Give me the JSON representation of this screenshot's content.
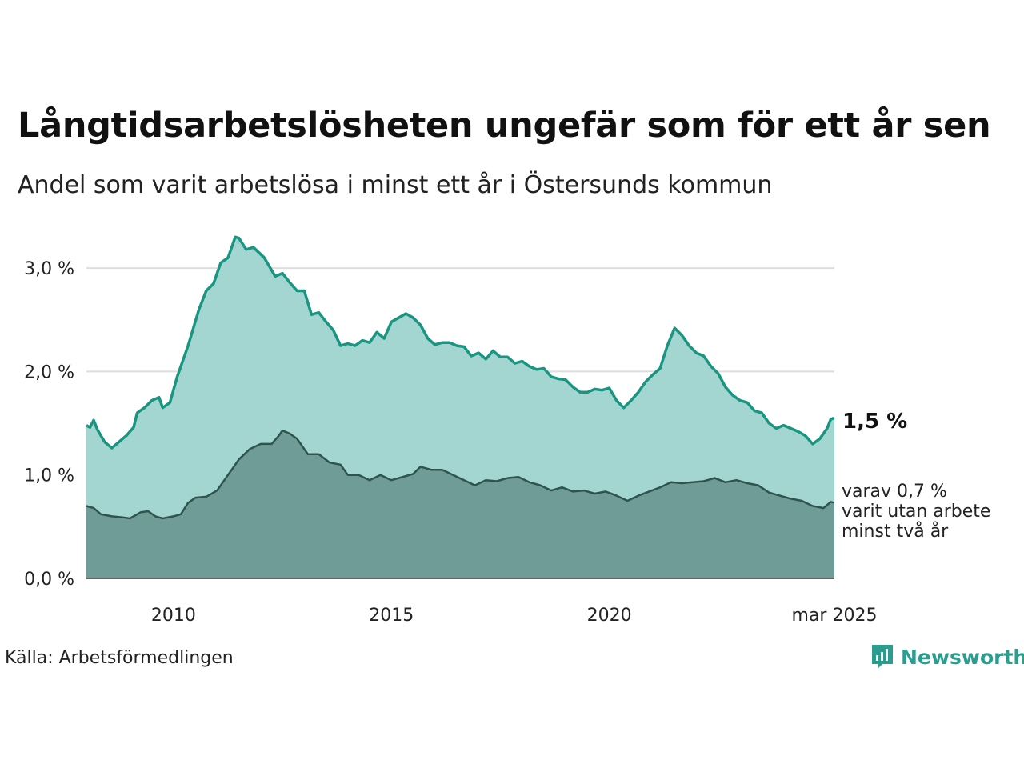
{
  "title": "Långtidsarbetslösheten ungefär som för ett år sen",
  "subtitle": "Andel som varit arbetslösa i minst ett år i Östersunds kommun",
  "source": "Källa: Arbetsförmedlingen",
  "brand": "Newsworthy",
  "end_label": "1,5 %",
  "annotation": [
    "varav 0,7 %",
    "varit utan arbete",
    "minst två år"
  ],
  "colors": {
    "top_line": "#1a9582",
    "top_fill": "#a3d6d0",
    "bottom_fill": "#6f9c96",
    "bottom_line": "#2f5450",
    "grid": "#dddddd",
    "brand": "#2a9d8f"
  },
  "chart_data": {
    "type": "area",
    "xlabel": "",
    "ylabel": "",
    "ylim": [
      0,
      3.3
    ],
    "xlim": [
      "2008-01",
      "2025-03"
    ],
    "y_ticks": [
      {
        "value": 0,
        "label": "0,0 %"
      },
      {
        "value": 1,
        "label": "1,0 %"
      },
      {
        "value": 2,
        "label": "2,0 %"
      },
      {
        "value": 3,
        "label": "3,0 %"
      }
    ],
    "x_ticks": [
      {
        "value": "2010-01",
        "label": "2010"
      },
      {
        "value": "2015-01",
        "label": "2015"
      },
      {
        "value": "2020-01",
        "label": "2020"
      },
      {
        "value": "2025-03",
        "label": "mar 2025"
      }
    ],
    "series": [
      {
        "name": "",
        "points": [
          [
            "2008-01",
            1.48
          ],
          [
            "2008-02",
            1.46
          ],
          [
            "2008-03",
            1.53
          ],
          [
            "2008-04",
            1.44
          ],
          [
            "2008-06",
            1.32
          ],
          [
            "2008-08",
            1.26
          ],
          [
            "2008-10",
            1.32
          ],
          [
            "2008-12",
            1.38
          ],
          [
            "2009-02",
            1.46
          ],
          [
            "2009-03",
            1.6
          ],
          [
            "2009-05",
            1.65
          ],
          [
            "2009-07",
            1.72
          ],
          [
            "2009-09",
            1.75
          ],
          [
            "2009-10",
            1.65
          ],
          [
            "2009-12",
            1.7
          ],
          [
            "2010-02",
            1.95
          ],
          [
            "2010-05",
            2.25
          ],
          [
            "2010-08",
            2.6
          ],
          [
            "2010-10",
            2.78
          ],
          [
            "2010-12",
            2.85
          ],
          [
            "2011-02",
            3.05
          ],
          [
            "2011-04",
            3.1
          ],
          [
            "2011-06",
            3.3
          ],
          [
            "2011-07",
            3.29
          ],
          [
            "2011-09",
            3.18
          ],
          [
            "2011-11",
            3.2
          ],
          [
            "2012-02",
            3.1
          ],
          [
            "2012-05",
            2.92
          ],
          [
            "2012-07",
            2.95
          ],
          [
            "2012-09",
            2.86
          ],
          [
            "2012-11",
            2.78
          ],
          [
            "2013-01",
            2.78
          ],
          [
            "2013-03",
            2.55
          ],
          [
            "2013-05",
            2.57
          ],
          [
            "2013-07",
            2.48
          ],
          [
            "2013-09",
            2.4
          ],
          [
            "2013-11",
            2.25
          ],
          [
            "2014-01",
            2.27
          ],
          [
            "2014-03",
            2.25
          ],
          [
            "2014-05",
            2.3
          ],
          [
            "2014-07",
            2.28
          ],
          [
            "2014-09",
            2.38
          ],
          [
            "2014-11",
            2.32
          ],
          [
            "2015-01",
            2.48
          ],
          [
            "2015-03",
            2.52
          ],
          [
            "2015-05",
            2.56
          ],
          [
            "2015-07",
            2.52
          ],
          [
            "2015-09",
            2.45
          ],
          [
            "2015-11",
            2.32
          ],
          [
            "2016-01",
            2.26
          ],
          [
            "2016-03",
            2.28
          ],
          [
            "2016-05",
            2.28
          ],
          [
            "2016-07",
            2.25
          ],
          [
            "2016-09",
            2.24
          ],
          [
            "2016-11",
            2.15
          ],
          [
            "2017-01",
            2.18
          ],
          [
            "2017-03",
            2.12
          ],
          [
            "2017-05",
            2.2
          ],
          [
            "2017-07",
            2.14
          ],
          [
            "2017-09",
            2.14
          ],
          [
            "2017-11",
            2.08
          ],
          [
            "2018-01",
            2.1
          ],
          [
            "2018-03",
            2.05
          ],
          [
            "2018-05",
            2.02
          ],
          [
            "2018-07",
            2.03
          ],
          [
            "2018-09",
            1.95
          ],
          [
            "2018-11",
            1.93
          ],
          [
            "2019-01",
            1.92
          ],
          [
            "2019-03",
            1.85
          ],
          [
            "2019-05",
            1.8
          ],
          [
            "2019-07",
            1.8
          ],
          [
            "2019-09",
            1.83
          ],
          [
            "2019-11",
            1.82
          ],
          [
            "2020-01",
            1.84
          ],
          [
            "2020-03",
            1.72
          ],
          [
            "2020-05",
            1.65
          ],
          [
            "2020-07",
            1.72
          ],
          [
            "2020-09",
            1.8
          ],
          [
            "2020-11",
            1.9
          ],
          [
            "2021-01",
            1.97
          ],
          [
            "2021-03",
            2.03
          ],
          [
            "2021-05",
            2.25
          ],
          [
            "2021-07",
            2.42
          ],
          [
            "2021-09",
            2.35
          ],
          [
            "2021-11",
            2.25
          ],
          [
            "2022-01",
            2.18
          ],
          [
            "2022-03",
            2.15
          ],
          [
            "2022-05",
            2.05
          ],
          [
            "2022-07",
            1.98
          ],
          [
            "2022-09",
            1.85
          ],
          [
            "2022-11",
            1.77
          ],
          [
            "2023-01",
            1.72
          ],
          [
            "2023-03",
            1.7
          ],
          [
            "2023-05",
            1.62
          ],
          [
            "2023-07",
            1.6
          ],
          [
            "2023-09",
            1.5
          ],
          [
            "2023-11",
            1.45
          ],
          [
            "2024-01",
            1.48
          ],
          [
            "2024-03",
            1.45
          ],
          [
            "2024-05",
            1.42
          ],
          [
            "2024-07",
            1.38
          ],
          [
            "2024-09",
            1.3
          ],
          [
            "2024-11",
            1.35
          ],
          [
            "2025-01",
            1.45
          ],
          [
            "2025-02",
            1.54
          ],
          [
            "2025-03",
            1.55
          ]
        ]
      },
      {
        "name": "",
        "points": [
          [
            "2008-01",
            0.7
          ],
          [
            "2008-03",
            0.68
          ],
          [
            "2008-05",
            0.62
          ],
          [
            "2008-08",
            0.6
          ],
          [
            "2008-11",
            0.59
          ],
          [
            "2009-01",
            0.58
          ],
          [
            "2009-04",
            0.64
          ],
          [
            "2009-06",
            0.65
          ],
          [
            "2009-08",
            0.6
          ],
          [
            "2009-10",
            0.58
          ],
          [
            "2010-01",
            0.6
          ],
          [
            "2010-03",
            0.62
          ],
          [
            "2010-05",
            0.73
          ],
          [
            "2010-07",
            0.78
          ],
          [
            "2010-10",
            0.79
          ],
          [
            "2011-01",
            0.85
          ],
          [
            "2011-04",
            1.0
          ],
          [
            "2011-07",
            1.15
          ],
          [
            "2011-10",
            1.25
          ],
          [
            "2012-01",
            1.3
          ],
          [
            "2012-04",
            1.3
          ],
          [
            "2012-06",
            1.38
          ],
          [
            "2012-07",
            1.43
          ],
          [
            "2012-09",
            1.4
          ],
          [
            "2012-11",
            1.35
          ],
          [
            "2013-02",
            1.2
          ],
          [
            "2013-05",
            1.2
          ],
          [
            "2013-08",
            1.12
          ],
          [
            "2013-11",
            1.1
          ],
          [
            "2014-01",
            1.0
          ],
          [
            "2014-04",
            1.0
          ],
          [
            "2014-07",
            0.95
          ],
          [
            "2014-10",
            1.0
          ],
          [
            "2015-01",
            0.95
          ],
          [
            "2015-04",
            0.98
          ],
          [
            "2015-07",
            1.01
          ],
          [
            "2015-09",
            1.08
          ],
          [
            "2015-12",
            1.05
          ],
          [
            "2016-03",
            1.05
          ],
          [
            "2016-06",
            1.0
          ],
          [
            "2016-09",
            0.95
          ],
          [
            "2016-12",
            0.9
          ],
          [
            "2017-03",
            0.95
          ],
          [
            "2017-06",
            0.94
          ],
          [
            "2017-09",
            0.97
          ],
          [
            "2017-12",
            0.98
          ],
          [
            "2018-03",
            0.93
          ],
          [
            "2018-06",
            0.9
          ],
          [
            "2018-09",
            0.85
          ],
          [
            "2018-12",
            0.88
          ],
          [
            "2019-03",
            0.84
          ],
          [
            "2019-06",
            0.85
          ],
          [
            "2019-09",
            0.82
          ],
          [
            "2019-12",
            0.84
          ],
          [
            "2020-03",
            0.8
          ],
          [
            "2020-06",
            0.75
          ],
          [
            "2020-09",
            0.8
          ],
          [
            "2020-12",
            0.84
          ],
          [
            "2021-03",
            0.88
          ],
          [
            "2021-06",
            0.93
          ],
          [
            "2021-09",
            0.92
          ],
          [
            "2021-12",
            0.93
          ],
          [
            "2022-03",
            0.94
          ],
          [
            "2022-06",
            0.97
          ],
          [
            "2022-09",
            0.93
          ],
          [
            "2022-12",
            0.95
          ],
          [
            "2023-03",
            0.92
          ],
          [
            "2023-06",
            0.9
          ],
          [
            "2023-09",
            0.83
          ],
          [
            "2023-12",
            0.8
          ],
          [
            "2024-03",
            0.77
          ],
          [
            "2024-06",
            0.75
          ],
          [
            "2024-09",
            0.7
          ],
          [
            "2024-12",
            0.68
          ],
          [
            "2025-02",
            0.74
          ],
          [
            "2025-03",
            0.73
          ]
        ]
      }
    ]
  }
}
